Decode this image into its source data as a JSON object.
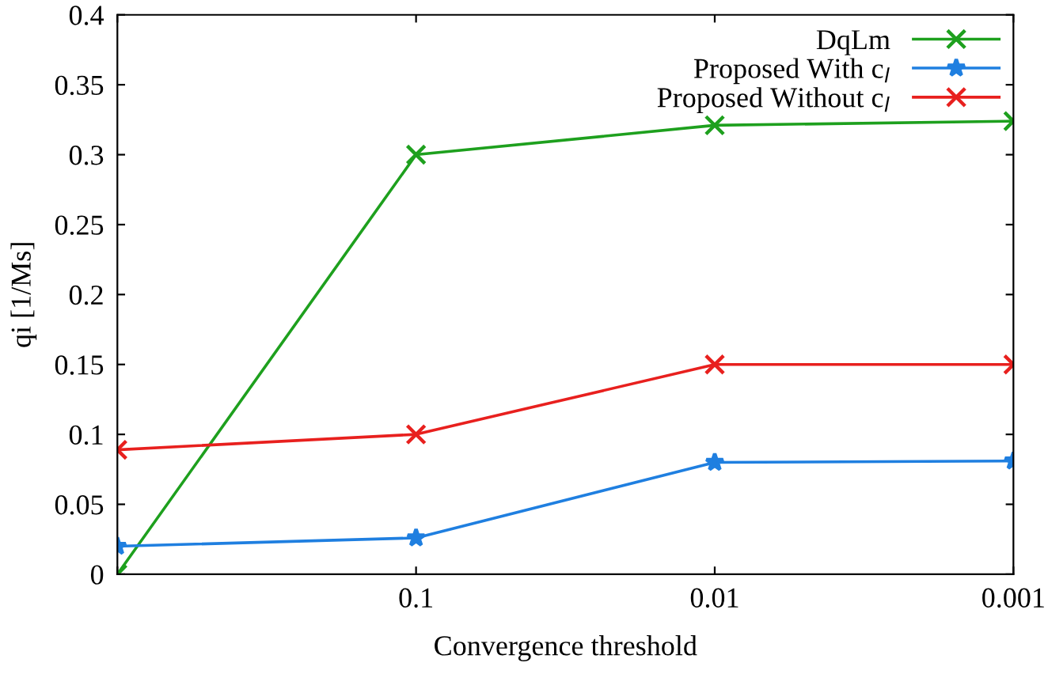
{
  "chart_data": {
    "type": "line",
    "xlabel": "Convergence threshold",
    "ylabel": "qi [1/Ms]",
    "x": [
      1,
      0.1,
      0.01,
      0.001
    ],
    "log": "x",
    "xlim": [
      1,
      0.001
    ],
    "xticks": [
      {
        "value": 1,
        "label": null
      },
      0.1,
      0.01,
      0.001
    ],
    "series": [
      {
        "name": "DqLm",
        "color": "#1ea01e",
        "marker": "cross",
        "values": [
          0,
          0.3,
          0.321,
          0.324
        ]
      },
      {
        "name": "Proposed With c$_{l}$",
        "color": "#1f7fe0",
        "marker": "star",
        "values": [
          0.02,
          0.026,
          0.08,
          0.081
        ]
      },
      {
        "name": "Proposed Without c$_{l}$",
        "color": "#e8201e",
        "marker": "cross",
        "values": [
          0.089,
          0.1,
          0.15,
          0.15
        ]
      }
    ],
    "ylim": [
      0,
      0.4
    ],
    "yticks": [
      0,
      0.05,
      0.1,
      0.15,
      0.2,
      0.25,
      0.3,
      0.35,
      0.4
    ],
    "legend": "top right",
    "grid": false,
    "line_style": "solid"
  }
}
